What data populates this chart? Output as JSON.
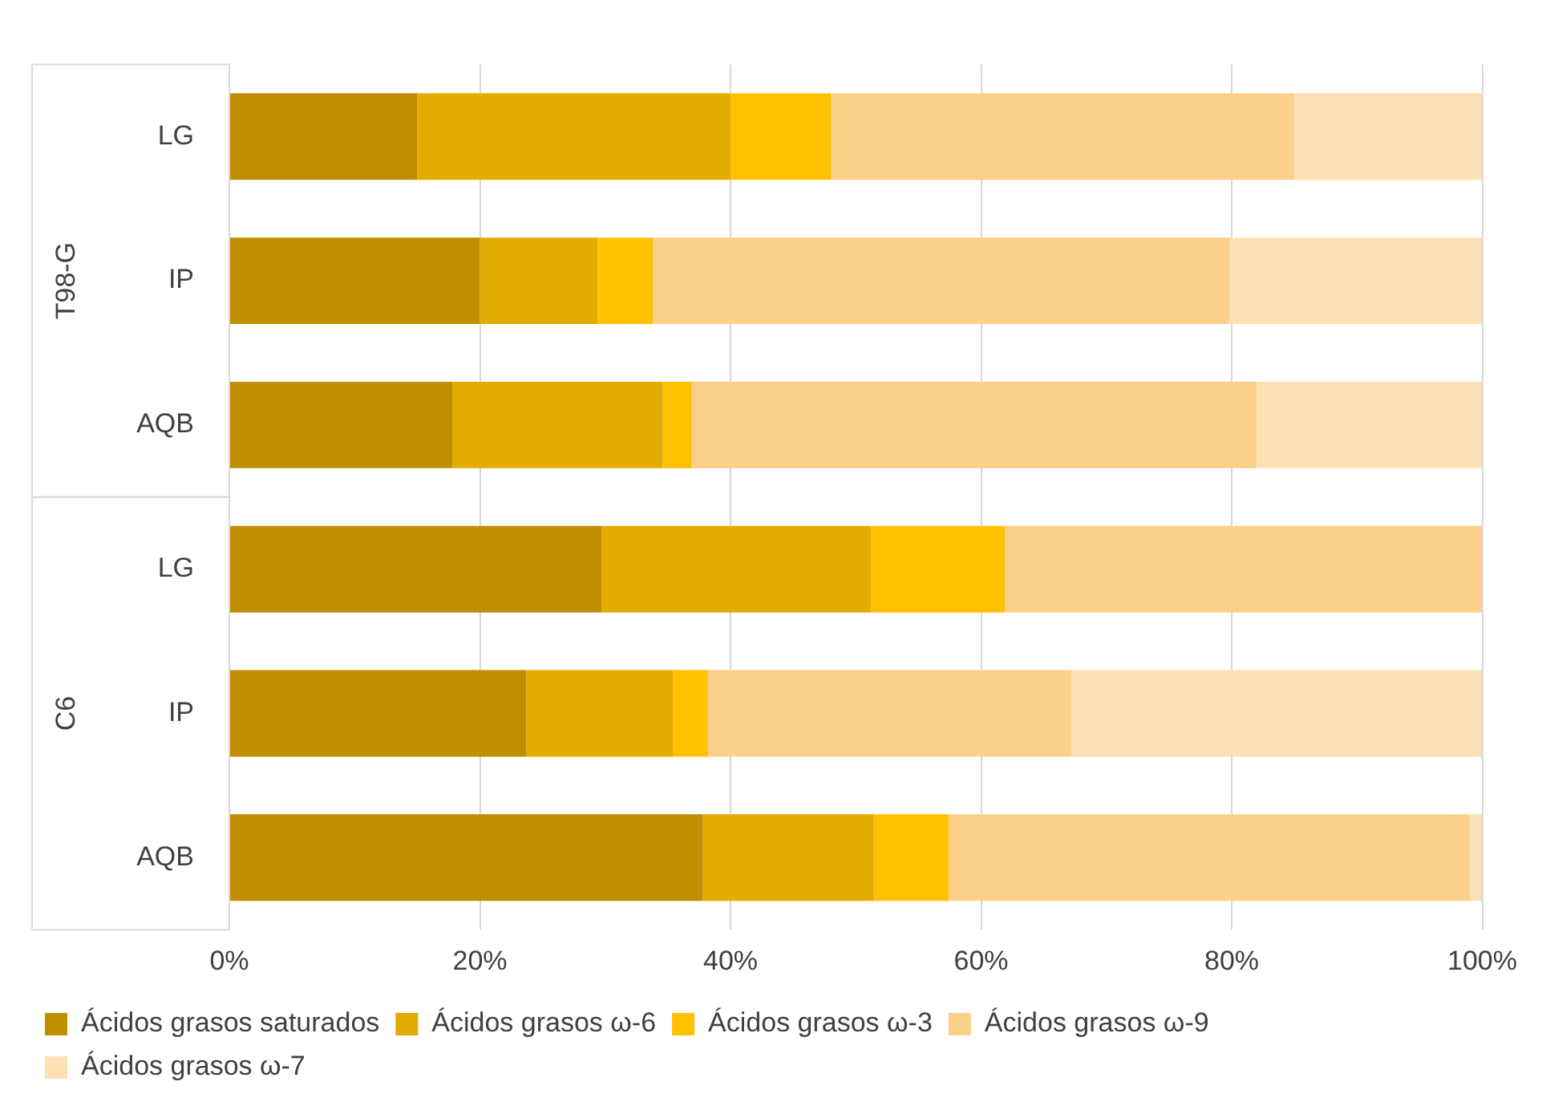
{
  "chart_data": {
    "type": "bar",
    "orientation": "horizontal",
    "stacked": true,
    "categories": [
      "LG",
      "IP",
      "AQB",
      "LG",
      "IP",
      "AQB"
    ],
    "series": [
      {
        "name": "Ácidos grasos saturados",
        "color": "#bf8f00",
        "values": [
          15,
          20,
          17.8,
          29.7,
          23.7,
          37.8
        ]
      },
      {
        "name": "Ácidos grasos ω-6",
        "color": "#e2ac00",
        "values": [
          25,
          9.4,
          16.8,
          21.5,
          11.7,
          13.6
        ]
      },
      {
        "name": "Ácidos grasos ω-3",
        "color": "#ffc000",
        "values": [
          8,
          4.4,
          2.3,
          10.7,
          2.8,
          6
        ]
      },
      {
        "name": "Ácidos grasos ω-9",
        "color": "#fdd08a",
        "values": [
          37,
          46,
          45.1,
          38.1,
          29,
          41.6
        ]
      },
      {
        "name": "Ácidos grasos ω-7",
        "color": "#fde0b6",
        "values": [
          15,
          20.2,
          18,
          0,
          32.8,
          1
        ]
      }
    ],
    "xlim": [
      0,
      100
    ],
    "xticks": [
      {
        "value": 0,
        "label": "0%"
      },
      {
        "value": 20,
        "label": "20%"
      },
      {
        "value": 40,
        "label": "40%"
      },
      {
        "value": 60,
        "label": "60%"
      },
      {
        "value": 80,
        "label": "80%"
      },
      {
        "value": 100,
        "label": "100%"
      }
    ],
    "annotations": [
      "T98-G",
      "C6"
    ],
    "grid": "x",
    "legend": "bottom"
  }
}
